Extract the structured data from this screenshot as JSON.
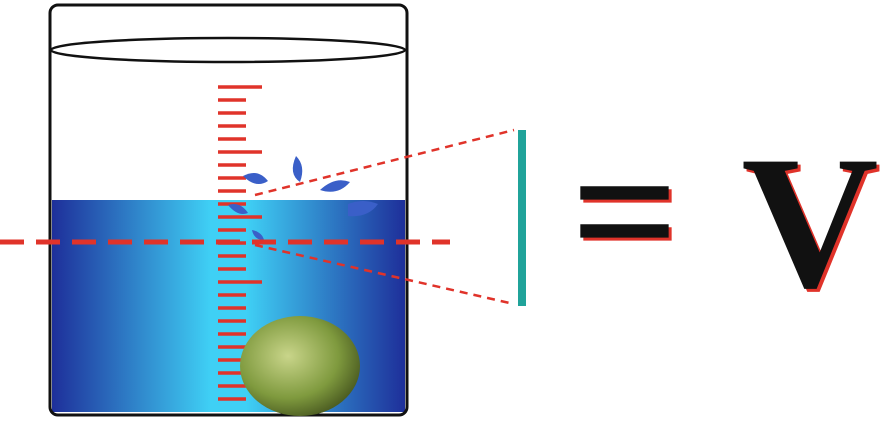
{
  "equation": {
    "symbol": "=",
    "label": "V"
  }
}
